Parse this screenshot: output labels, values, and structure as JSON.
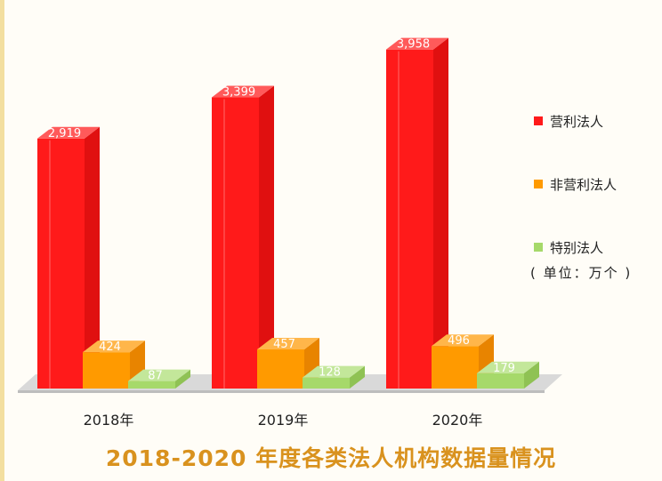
{
  "chart_data": {
    "type": "bar",
    "title": "2018-2020 年度各类法人机构数据量情况",
    "unit_note": "( 单位：万个 )",
    "categories": [
      "2018年",
      "2019年",
      "2020年"
    ],
    "series": [
      {
        "name": "营利法人",
        "values": [
          2919,
          3399,
          3958
        ],
        "labels": [
          "2,919",
          "3,399",
          "3,958"
        ],
        "color": "#ff1a1a"
      },
      {
        "name": "非营利法人",
        "values": [
          424,
          457,
          496
        ],
        "labels": [
          "424",
          "457",
          "496"
        ],
        "color": "#ff9a00"
      },
      {
        "name": "特别法人",
        "values": [
          87,
          128,
          179
        ],
        "labels": [
          "87",
          "128",
          "179"
        ],
        "color": "#a6d96a"
      }
    ],
    "ylim": [
      0,
      4100
    ],
    "legend_position": "right",
    "grid": false
  }
}
